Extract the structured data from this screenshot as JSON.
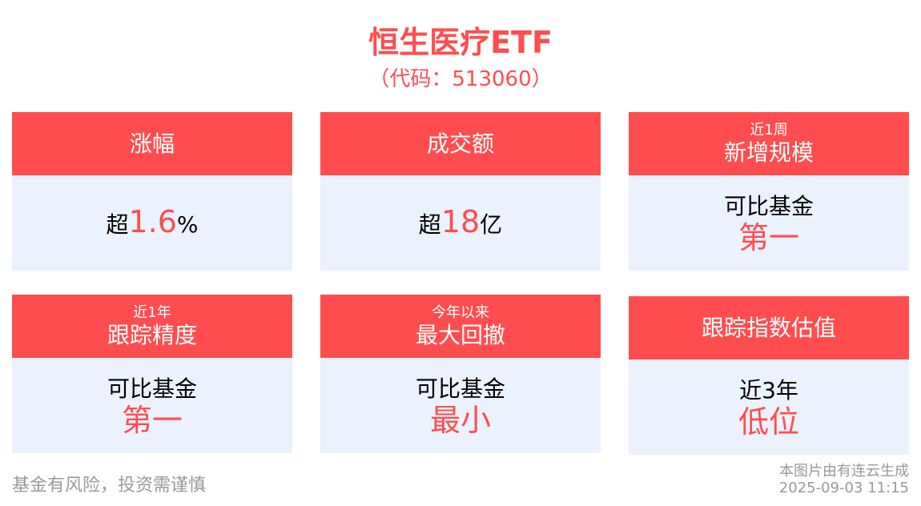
{
  "title": "恒生医疗ETF",
  "code": "（代码：513060）",
  "colors": {
    "accent": "#ff4d4f",
    "card_body": "#ebf2fe"
  },
  "cards": [
    {
      "sub": "",
      "label": "涨幅",
      "prefix": "超",
      "value": "1.6",
      "suffix": "%"
    },
    {
      "sub": "",
      "label": "成交额",
      "prefix": "超",
      "value": "18",
      "suffix": "亿"
    },
    {
      "sub": "近1周",
      "label": "新增规模",
      "line": "可比基金",
      "big": "第一"
    },
    {
      "sub": "近1年",
      "label": "跟踪精度",
      "line": "可比基金",
      "big": "第一"
    },
    {
      "sub": "今年以来",
      "label": "最大回撤",
      "line": "可比基金",
      "big": "最小"
    },
    {
      "sub": "",
      "label": "跟踪指数估值",
      "line": "近3年",
      "big": "低位"
    }
  ],
  "footer": {
    "disclaimer": "基金有风险，投资需谨慎",
    "source": "本图片由有连云生成",
    "timestamp": "2025-09-03 11:15"
  }
}
